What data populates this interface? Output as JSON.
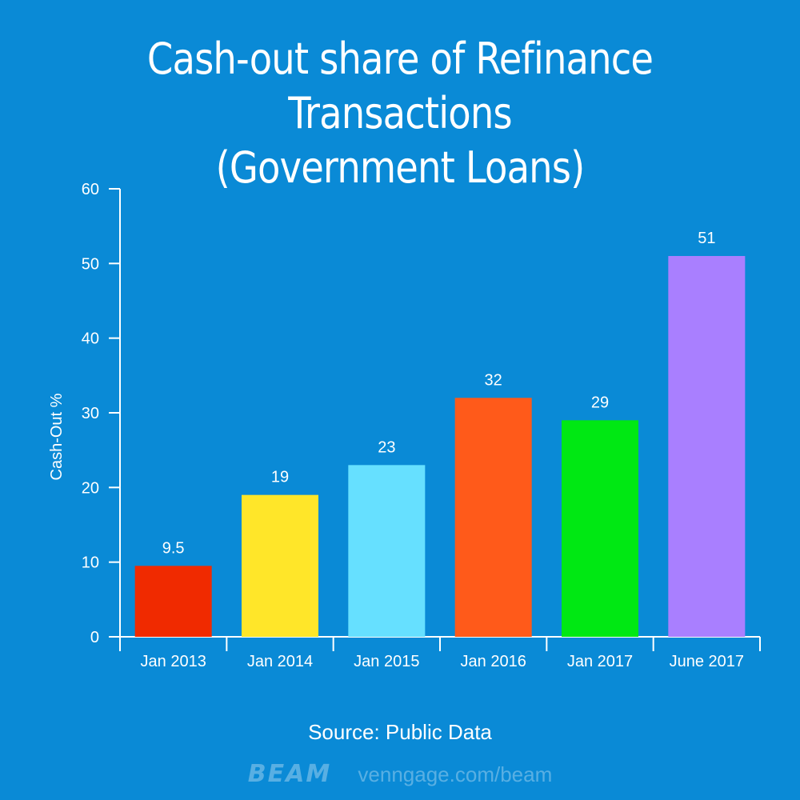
{
  "title_line1": "Cash-out share of Refinance Transactions",
  "title_line2": "(Government Loans)",
  "source": "Source: Public Data",
  "footer": {
    "brand": "BEAM",
    "url": "venngage.com/beam"
  },
  "colors": {
    "background": "#0a8ad6",
    "axis": "#ffffff"
  },
  "chart_data": {
    "type": "bar",
    "title": "Cash-out share of Refinance Transactions (Government Loans)",
    "xlabel": "",
    "ylabel": "Cash-Out %",
    "ylim": [
      0,
      60
    ],
    "yticks": [
      0,
      10,
      20,
      30,
      40,
      50,
      60
    ],
    "grid": false,
    "categories": [
      "Jan 2013",
      "Jan 2014",
      "Jan 2015",
      "Jan 2016",
      "Jan 2017",
      "June 2017"
    ],
    "values": [
      9.5,
      19,
      23,
      32,
      29,
      51
    ],
    "labels": [
      "9.5",
      "19",
      "23",
      "32",
      "29",
      "51"
    ],
    "bar_colors": [
      "#f02a00",
      "#ffe629",
      "#66e0ff",
      "#ff5a1a",
      "#00e813",
      "#a97fff"
    ]
  }
}
